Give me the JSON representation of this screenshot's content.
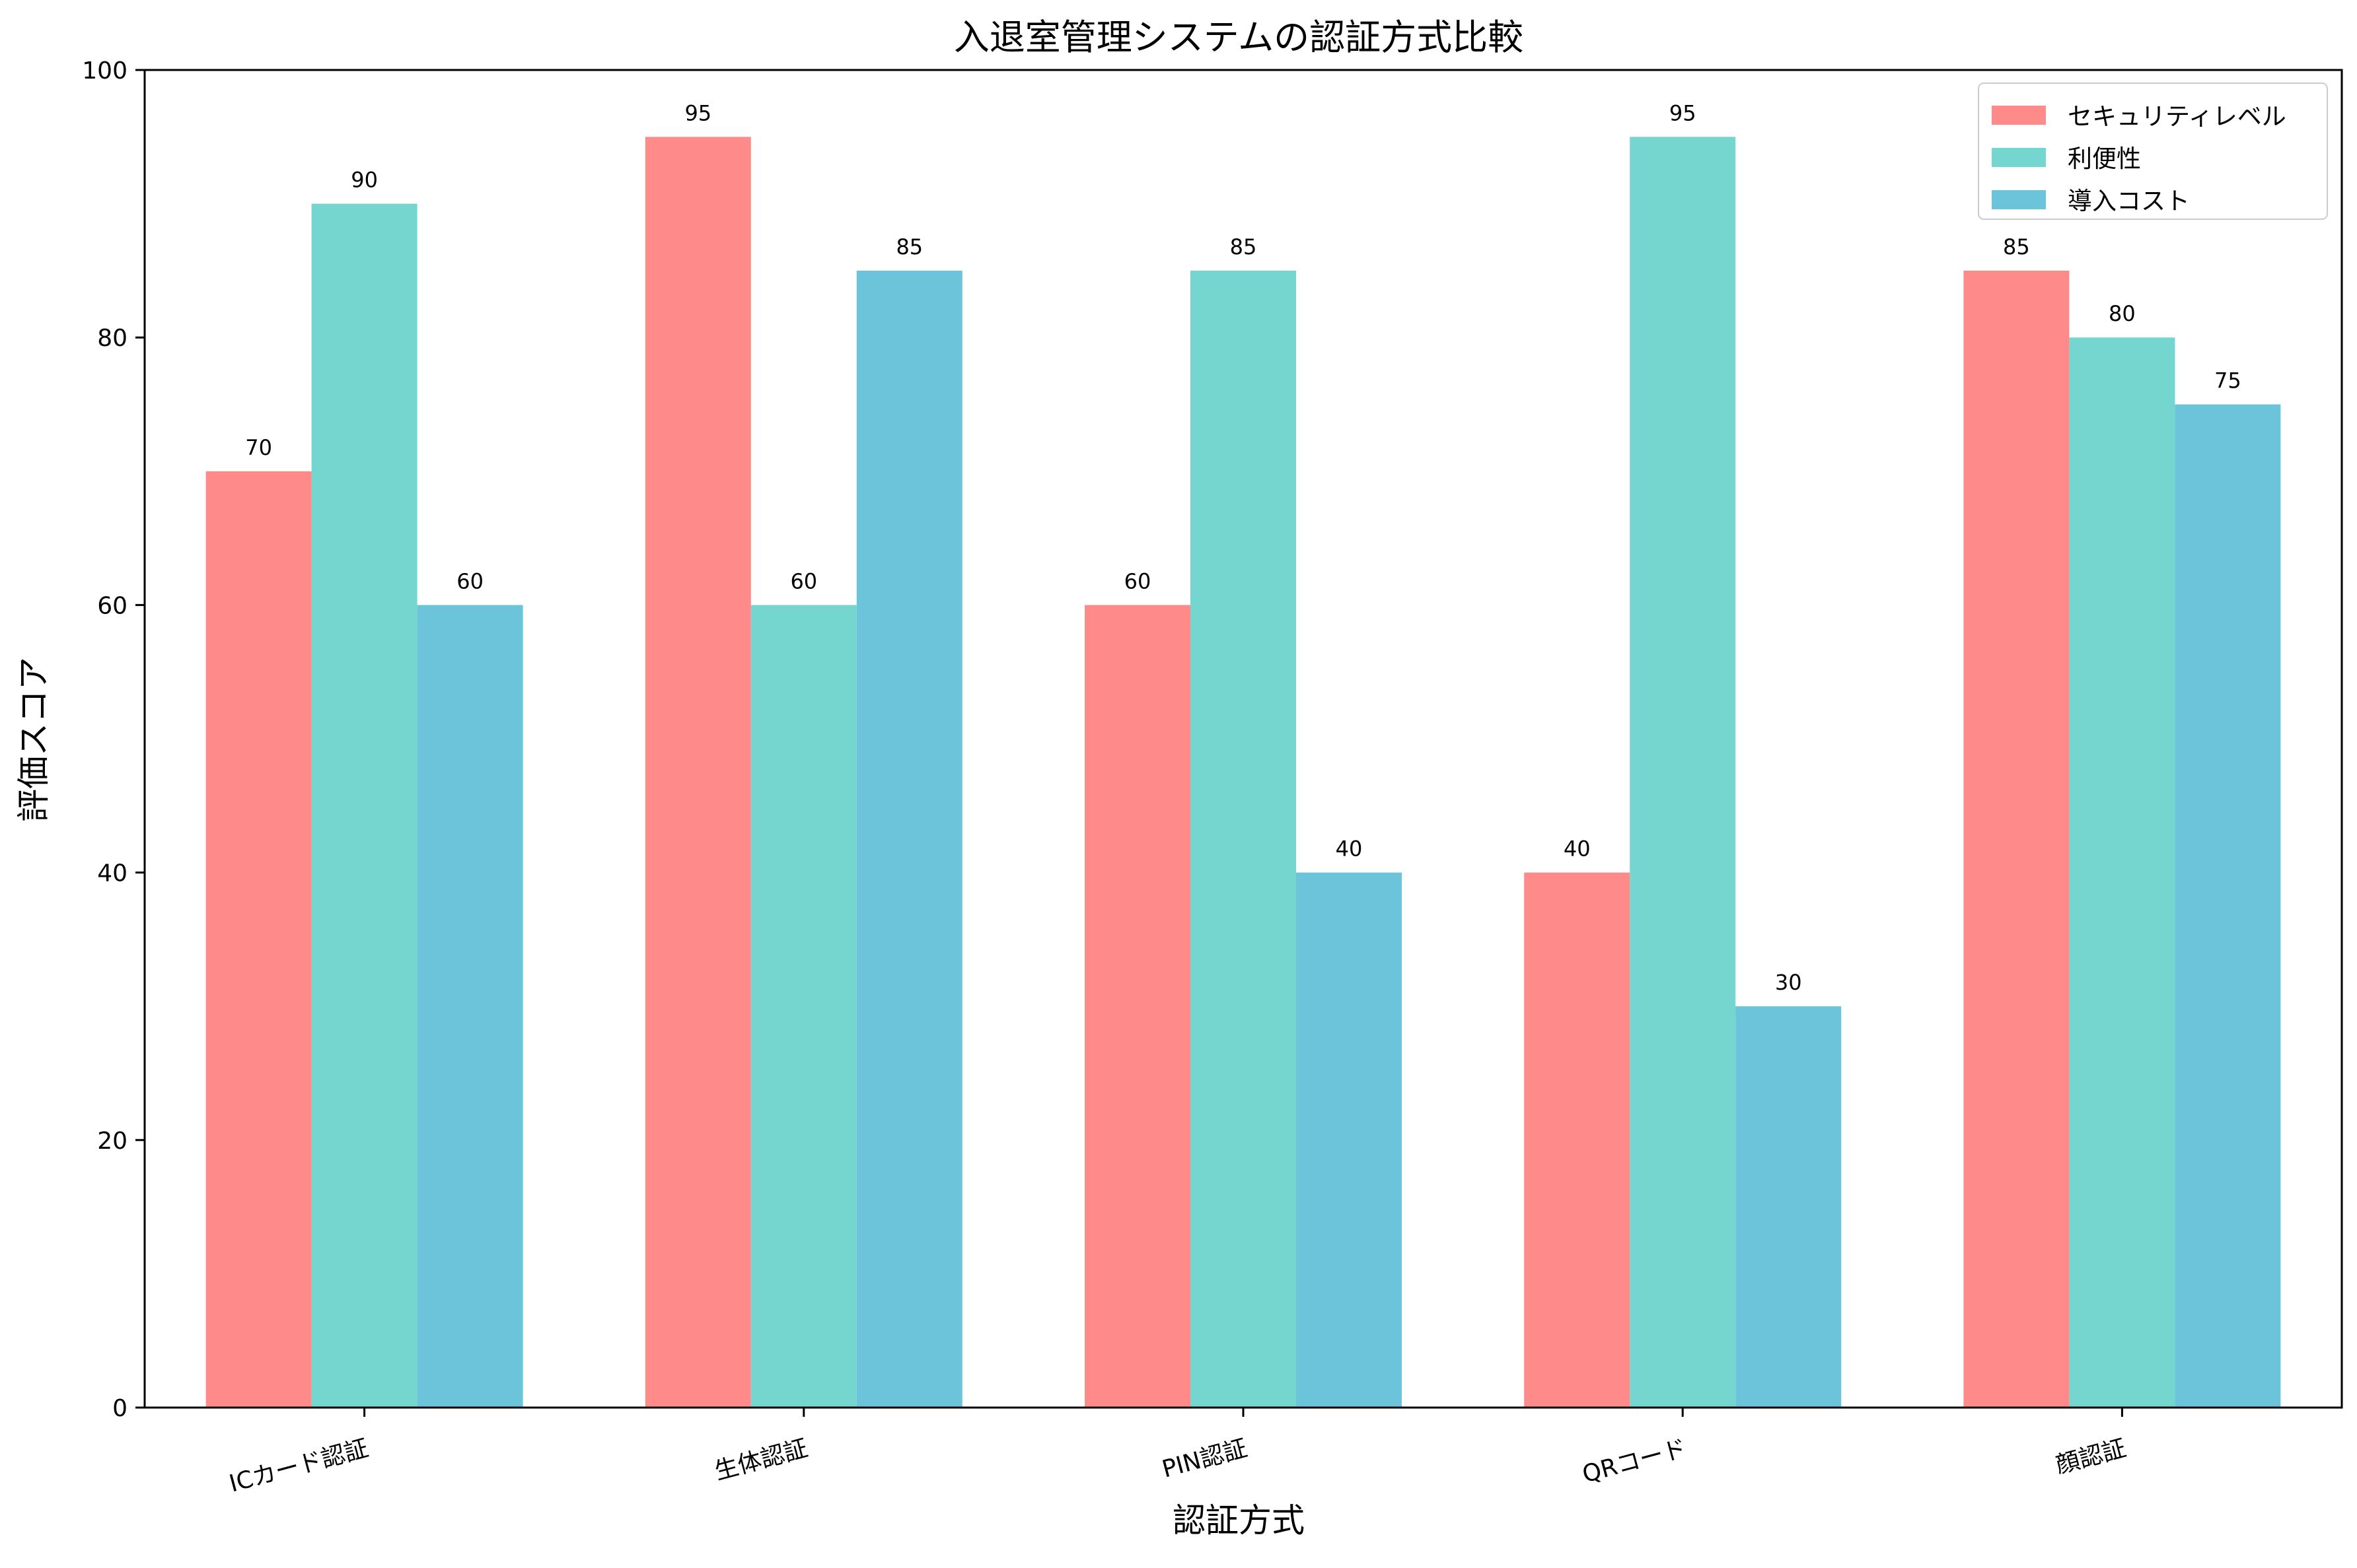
{
  "chart_data": {
    "type": "bar",
    "title": "入退室管理システムの認証方式比較",
    "xlabel": "認証方式",
    "ylabel": "評価スコア",
    "categories": [
      "ICカード認証",
      "生体認証",
      "PIN認証",
      "QRコード",
      "顔認証"
    ],
    "series": [
      {
        "name": "セキュリティレベル",
        "color": "#FF8A8A",
        "values": [
          70,
          95,
          60,
          40,
          85
        ]
      },
      {
        "name": "利便性",
        "color": "#74D6CF",
        "values": [
          90,
          60,
          85,
          95,
          80
        ]
      },
      {
        "name": "導入コスト",
        "color": "#6BC4D9",
        "values": [
          60,
          85,
          40,
          30,
          75
        ]
      }
    ],
    "ylim": [
      0,
      100
    ],
    "yticks": [
      0,
      20,
      40,
      60,
      80,
      100
    ],
    "grid": false,
    "legend_position": "top-right",
    "data_labels": true,
    "xtick_rotation": "slanted"
  }
}
